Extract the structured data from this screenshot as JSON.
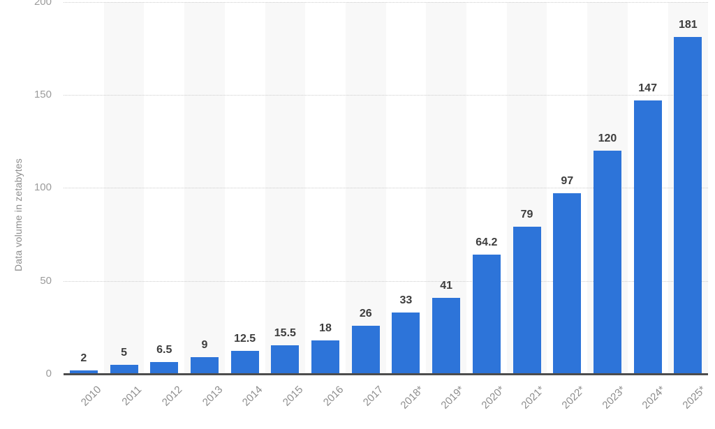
{
  "chart_data": {
    "type": "bar",
    "title": "",
    "xlabel": "",
    "ylabel": "Data volume in zetabytes",
    "categories": [
      "2010",
      "2011",
      "2012",
      "2013",
      "2014",
      "2015",
      "2016",
      "2017",
      "2018*",
      "2019*",
      "2020*",
      "2021*",
      "2022*",
      "2023*",
      "2024*",
      "2025*"
    ],
    "values": [
      2,
      5,
      6.5,
      9,
      12.5,
      15.5,
      18,
      26,
      33,
      41,
      64.2,
      79,
      97,
      120,
      147,
      181
    ],
    "value_labels": [
      "2",
      "5",
      "6.5",
      "9",
      "12.5",
      "15.5",
      "18",
      "26",
      "33",
      "41",
      "64.2",
      "79",
      "97",
      "120",
      "147",
      "181"
    ],
    "yticks": [
      0,
      50,
      100,
      150,
      200
    ],
    "ylim": [
      0,
      200
    ],
    "grid": "horizontal-dotted",
    "legend": "none",
    "colors": {
      "bar": "#2d74d9",
      "column_stripe": "#f8f8f8",
      "gridline": "#cccccc",
      "axis_line": "#4d4d4d",
      "tick_text": "#9b9b9b",
      "category_text": "#8d8d8d",
      "value_text": "#3d3d3d"
    }
  }
}
